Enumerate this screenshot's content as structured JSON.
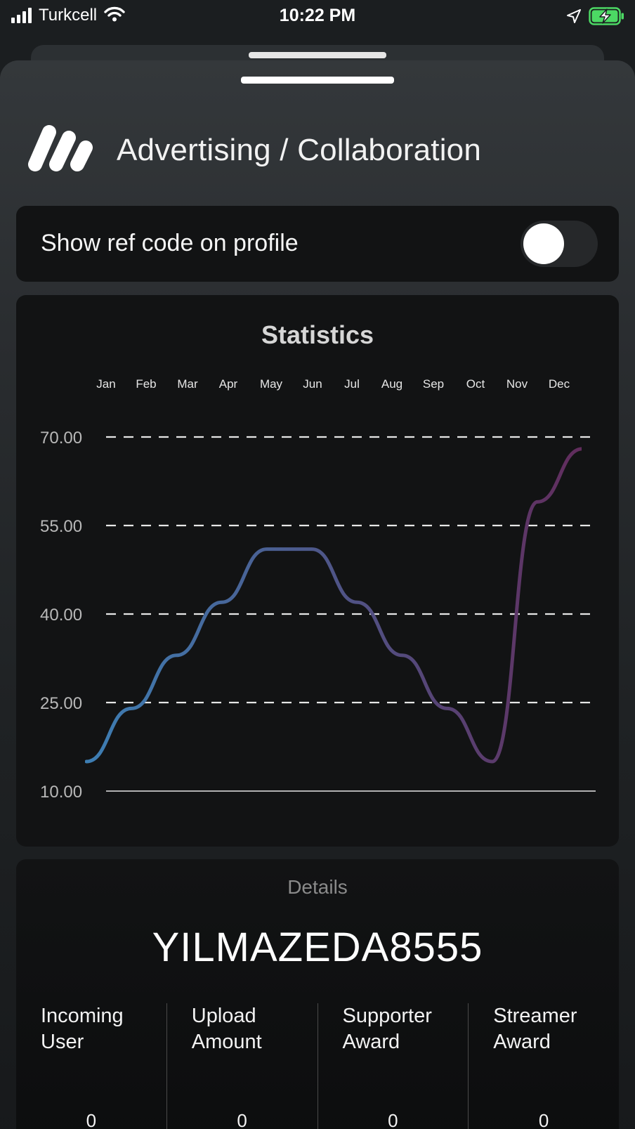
{
  "status_bar": {
    "carrier": "Turkcell",
    "time": "10:22 PM",
    "battery_color": "#4cd964"
  },
  "header": {
    "title": "Advertising / Collaboration",
    "logo_icon": "brand-logo-icon"
  },
  "settings": {
    "show_ref_label": "Show ref code on profile",
    "show_ref_enabled": false
  },
  "statistics": {
    "title": "Statistics"
  },
  "chart_data": {
    "type": "line",
    "title": "Statistics",
    "categories": [
      "Jan",
      "Feb",
      "Mar",
      "Apr",
      "May",
      "Jun",
      "Jul",
      "Aug",
      "Sep",
      "Oct",
      "Nov",
      "Dec"
    ],
    "y_ticks": [
      "70.00",
      "55.00",
      "40.00",
      "25.00",
      "10.00"
    ],
    "ylim": [
      10,
      70
    ],
    "series": [
      {
        "values": [
          15,
          24,
          33,
          42,
          51,
          51,
          42,
          33,
          24,
          15,
          59,
          68
        ]
      }
    ],
    "grid": "dashed horizontal",
    "gradient_colors": [
      "#3d7eb3",
      "#612c5c"
    ]
  },
  "details": {
    "label": "Details",
    "ref_code": "YILMAZEDA8555",
    "metrics": [
      {
        "label": "Incoming User",
        "value": "0"
      },
      {
        "label": "Upload Amount",
        "value": "0"
      },
      {
        "label": "Supporter Award",
        "value": "0"
      },
      {
        "label": "Streamer Award",
        "value": "0"
      }
    ]
  }
}
